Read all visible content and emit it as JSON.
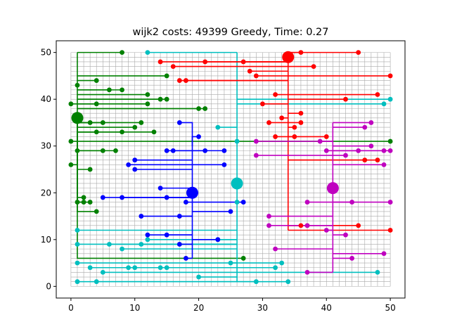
{
  "chart_data": {
    "type": "scatter",
    "title": "wijk2 costs: 49399 Greedy, Time: 0.27",
    "xlabel": "",
    "ylabel": "",
    "xlim": [
      -2.3,
      52.3
    ],
    "ylim": [
      -2.5,
      52.5
    ],
    "xticks": [
      0,
      10,
      20,
      30,
      40,
      50
    ],
    "yticks": [
      0,
      10,
      20,
      30,
      40,
      50
    ],
    "grid": {
      "x_min": 0,
      "x_max": 50,
      "y_min": 0,
      "y_max": 50,
      "step": 1
    },
    "grid_color": "#a9a9a9",
    "batteries": [
      {
        "name": "green",
        "color": "#008000",
        "x": 1,
        "y": 36,
        "trunk": [
          [
            1,
            36
          ],
          [
            1,
            50
          ]
        ],
        "houses": [
          [
            8,
            50
          ],
          [
            15,
            45
          ],
          [
            4,
            44
          ],
          [
            1,
            43
          ],
          [
            6,
            42
          ],
          [
            8,
            42
          ],
          [
            12,
            41
          ],
          [
            14,
            40
          ],
          [
            15,
            40
          ],
          [
            0,
            39
          ],
          [
            4,
            39
          ],
          [
            12,
            39
          ],
          [
            20,
            38
          ],
          [
            21,
            38
          ],
          [
            3,
            35
          ],
          [
            5,
            35
          ],
          [
            11,
            35
          ],
          [
            10,
            34
          ],
          [
            4,
            33
          ],
          [
            8,
            33
          ],
          [
            13,
            33
          ],
          [
            0,
            31
          ],
          [
            50,
            31
          ],
          [
            1,
            29
          ],
          [
            5,
            29
          ],
          [
            7,
            29
          ],
          [
            0,
            26
          ],
          [
            3,
            25
          ],
          [
            2,
            19
          ],
          [
            2,
            18
          ],
          [
            3,
            18
          ],
          [
            1,
            18
          ],
          [
            4,
            16
          ],
          [
            27,
            6
          ]
        ]
      },
      {
        "name": "cyan",
        "color": "#00bfbf",
        "x": 26,
        "y": 22,
        "trunk": [
          [
            26,
            1
          ],
          [
            26,
            50
          ]
        ],
        "houses": [
          [
            12,
            50
          ],
          [
            50,
            40
          ],
          [
            49,
            39
          ],
          [
            23,
            34
          ],
          [
            26,
            31
          ],
          [
            26,
            18
          ],
          [
            1,
            12
          ],
          [
            1,
            9
          ],
          [
            6,
            9
          ],
          [
            8,
            8
          ],
          [
            11,
            9
          ],
          [
            17,
            9
          ],
          [
            12,
            10
          ],
          [
            23,
            10
          ],
          [
            1,
            5
          ],
          [
            25,
            5
          ],
          [
            33,
            5
          ],
          [
            3,
            4
          ],
          [
            9,
            4
          ],
          [
            10,
            4
          ],
          [
            14,
            4
          ],
          [
            15,
            4
          ],
          [
            32,
            4
          ],
          [
            5,
            3
          ],
          [
            48,
            3
          ],
          [
            20,
            2
          ],
          [
            1,
            1
          ],
          [
            4,
            1
          ],
          [
            29,
            1
          ],
          [
            34,
            1
          ]
        ]
      },
      {
        "name": "red",
        "color": "#ff0000",
        "x": 34,
        "y": 49,
        "trunk": [
          [
            34,
            12
          ],
          [
            34,
            50
          ]
        ],
        "houses": [
          [
            45,
            50
          ],
          [
            36,
            50
          ],
          [
            14,
            48
          ],
          [
            21,
            48
          ],
          [
            27,
            48
          ],
          [
            16,
            47
          ],
          [
            38,
            47
          ],
          [
            28,
            46
          ],
          [
            50,
            45
          ],
          [
            29,
            45
          ],
          [
            17,
            44
          ],
          [
            18,
            44
          ],
          [
            32,
            41
          ],
          [
            48,
            41
          ],
          [
            43,
            40
          ],
          [
            30,
            39
          ],
          [
            36,
            37
          ],
          [
            33,
            36
          ],
          [
            36,
            35
          ],
          [
            31,
            35
          ],
          [
            35,
            34
          ],
          [
            32,
            32
          ],
          [
            35,
            32
          ],
          [
            40,
            32
          ],
          [
            46,
            27
          ],
          [
            48,
            27
          ],
          [
            37,
            13
          ],
          [
            36,
            13
          ],
          [
            45,
            13
          ],
          [
            50,
            12
          ]
        ]
      },
      {
        "name": "blue",
        "color": "#0000ff",
        "x": 19,
        "y": 20,
        "trunk": [
          [
            19,
            6
          ],
          [
            19,
            30
          ]
        ],
        "houses": [
          [
            17,
            35
          ],
          [
            20,
            32
          ],
          [
            15,
            29
          ],
          [
            16,
            29
          ],
          [
            21,
            29
          ],
          [
            24,
            29
          ],
          [
            10,
            27
          ],
          [
            9,
            26
          ],
          [
            10,
            25
          ],
          [
            24,
            26
          ],
          [
            14,
            21
          ],
          [
            5,
            19
          ],
          [
            8,
            19
          ],
          [
            15,
            19
          ],
          [
            18,
            18
          ],
          [
            27,
            18
          ],
          [
            25,
            16
          ],
          [
            11,
            15
          ],
          [
            17,
            15
          ],
          [
            12,
            11
          ],
          [
            15,
            11
          ],
          [
            17,
            9
          ],
          [
            18,
            6
          ],
          [
            23,
            10
          ]
        ]
      },
      {
        "name": "magenta",
        "color": "#bf00bf",
        "x": 41,
        "y": 21,
        "trunk": [
          [
            41,
            3
          ],
          [
            41,
            35
          ]
        ],
        "houses": [
          [
            47,
            35
          ],
          [
            46,
            34
          ],
          [
            29,
            31
          ],
          [
            39,
            31
          ],
          [
            40,
            29
          ],
          [
            45,
            29
          ],
          [
            49,
            29
          ],
          [
            47,
            30
          ],
          [
            50,
            29
          ],
          [
            43,
            28
          ],
          [
            29,
            28
          ],
          [
            49,
            26
          ],
          [
            37,
            18
          ],
          [
            44,
            18
          ],
          [
            50,
            18
          ],
          [
            31,
            15
          ],
          [
            31,
            13
          ],
          [
            37,
            13
          ],
          [
            40,
            12
          ],
          [
            43,
            11
          ],
          [
            32,
            8
          ],
          [
            49,
            7
          ],
          [
            44,
            6
          ],
          [
            37,
            3
          ]
        ]
      }
    ]
  }
}
